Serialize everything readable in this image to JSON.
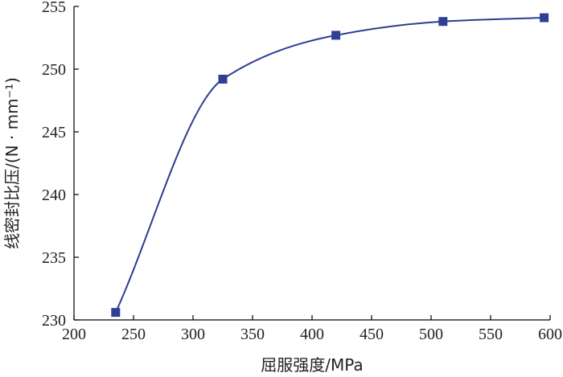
{
  "chart_data": {
    "type": "line",
    "title": "",
    "xlabel": "屈服强度/MPa",
    "ylabel": "线密封比压/(N · mm⁻¹)",
    "xlim": [
      200,
      600
    ],
    "ylim": [
      230,
      255
    ],
    "xticks": [
      200,
      250,
      300,
      350,
      400,
      450,
      500,
      550,
      600
    ],
    "yticks": [
      230,
      235,
      240,
      245,
      250,
      255
    ],
    "grid": false,
    "smooth": true,
    "marker": "square",
    "color": "#2f3f97",
    "series": [
      {
        "x": [
          235,
          325,
          420,
          510,
          595
        ],
        "y": [
          230.6,
          249.2,
          252.7,
          253.8,
          254.1
        ]
      }
    ]
  }
}
